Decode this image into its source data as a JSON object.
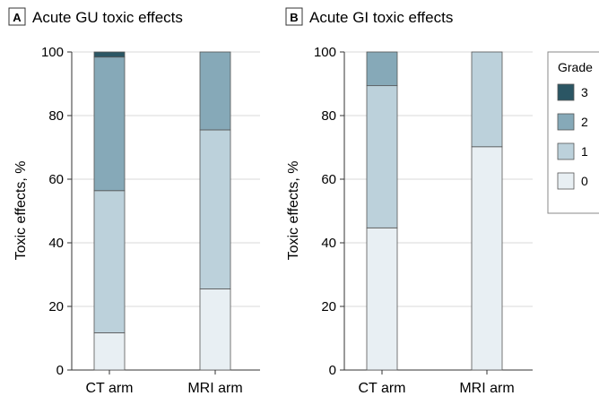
{
  "colors": {
    "grade_3": "#2b5664",
    "grade_2": "#86a9b8",
    "grade_1": "#bcd1db",
    "grade_0": "#e8eff3"
  },
  "legend": {
    "title": "Grade",
    "entries": [
      "3",
      "2",
      "1",
      "0"
    ]
  },
  "chart_data": [
    {
      "type": "bar",
      "stacked": true,
      "panel_letter": "A",
      "title": "Acute GU toxic effects",
      "ylabel": "Toxic effects, %",
      "xlabel": "",
      "ylim": [
        0,
        100
      ],
      "yticks": [
        "0",
        "20",
        "40",
        "60",
        "80",
        "100"
      ],
      "categories": [
        "CT arm",
        "MRI arm"
      ],
      "series": [
        {
          "name": "0",
          "values": [
            11.7,
            25.5
          ]
        },
        {
          "name": "1",
          "values": [
            44.7,
            50.0
          ]
        },
        {
          "name": "2",
          "values": [
            42.0,
            24.5
          ]
        },
        {
          "name": "3",
          "values": [
            1.6,
            0
          ]
        }
      ],
      "grid": true
    },
    {
      "type": "bar",
      "stacked": true,
      "panel_letter": "B",
      "title": "Acute GI toxic effects",
      "ylabel": "Toxic effects, %",
      "xlabel": "",
      "ylim": [
        0,
        100
      ],
      "yticks": [
        "0",
        "20",
        "40",
        "60",
        "80",
        "100"
      ],
      "categories": [
        "CT arm",
        "MRI arm"
      ],
      "series": [
        {
          "name": "0",
          "values": [
            44.7,
            70.2
          ]
        },
        {
          "name": "1",
          "values": [
            44.7,
            29.8
          ]
        },
        {
          "name": "2",
          "values": [
            10.6,
            0
          ]
        },
        {
          "name": "3",
          "values": [
            0,
            0
          ]
        }
      ],
      "grid": true,
      "legend_position": "right"
    }
  ]
}
